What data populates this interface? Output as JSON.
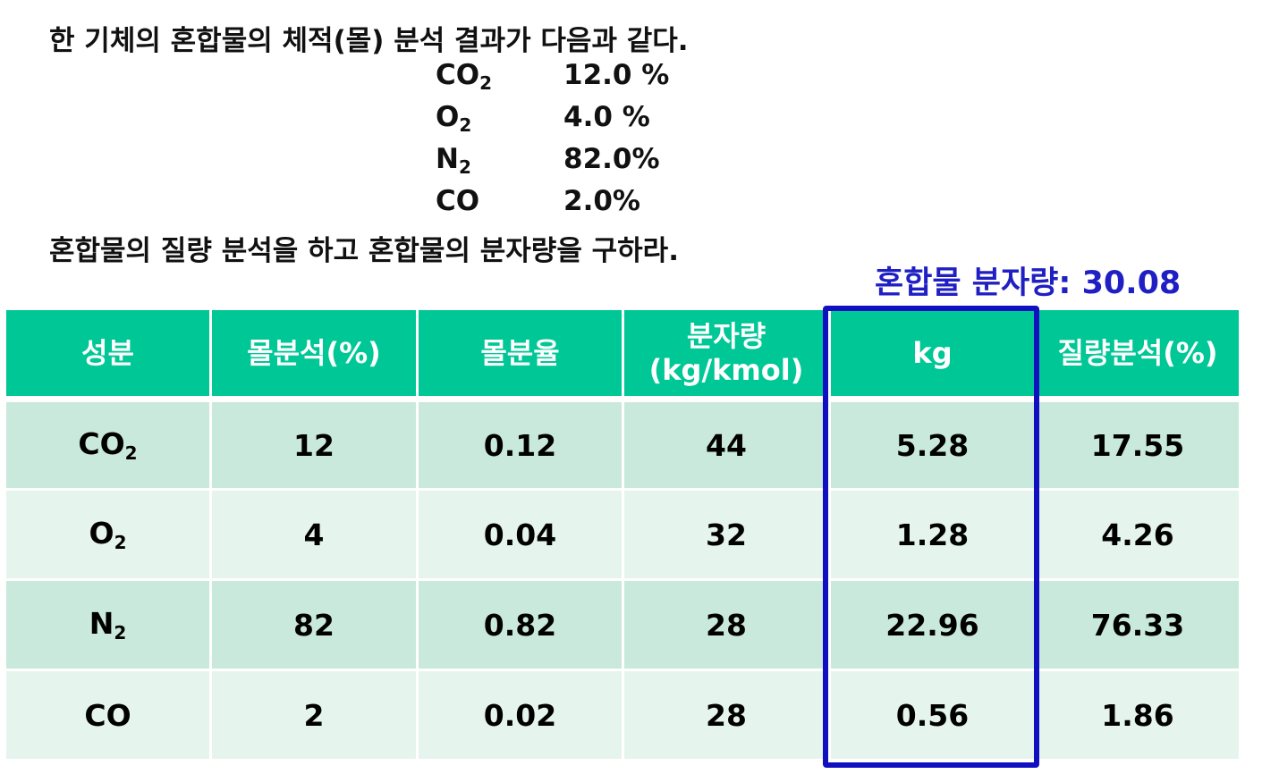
{
  "problem": {
    "line1": "한 기체의 혼합물의 체적(몰) 분석 결과가 다음과 같다.",
    "gases": [
      {
        "base": "CO",
        "sub": "2",
        "value": "12.0 %"
      },
      {
        "base": "O",
        "sub": "2",
        "value": "4.0 %"
      },
      {
        "base": "N",
        "sub": "2",
        "value": "82.0%"
      },
      {
        "base": "CO",
        "value": "2.0%"
      }
    ],
    "line2": "혼합물의 질량 분석을 하고 혼합물의 분자량을 구하라."
  },
  "annotation": "혼합물 분자량: 30.08",
  "table": {
    "header": [
      [
        "성분"
      ],
      [
        "몰분석(%)"
      ],
      [
        "몰분율"
      ],
      [
        "분자량",
        "(kg/kmol)"
      ],
      [
        "kg"
      ],
      [
        "질량분석(%)"
      ]
    ],
    "rows": [
      [
        {
          "base": "CO",
          "sub": "2"
        },
        "12",
        "0.12",
        "44",
        "5.28",
        "17.55"
      ],
      [
        {
          "base": "O",
          "sub": "2"
        },
        "4",
        "0.04",
        "32",
        "1.28",
        "4.26"
      ],
      [
        {
          "base": "N",
          "sub": "2"
        },
        "82",
        "0.82",
        "28",
        "22.96",
        "76.33"
      ],
      [
        {
          "base": "CO"
        },
        "2",
        "0.02",
        "28",
        "0.56",
        "1.86"
      ]
    ]
  }
}
